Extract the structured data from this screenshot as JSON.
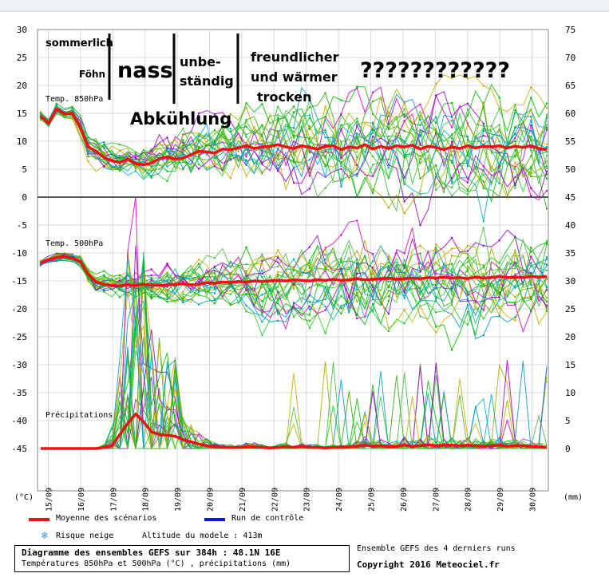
{
  "chart_data": {
    "type": "line",
    "x_categories": [
      "15/09",
      "16/09",
      "17/09",
      "18/09",
      "19/09",
      "20/09",
      "21/09",
      "22/09",
      "23/09",
      "24/09",
      "25/09",
      "26/09",
      "27/09",
      "28/09",
      "29/09",
      "30/09"
    ],
    "left_axis_ticks": [
      30,
      25,
      20,
      15,
      10,
      5,
      0,
      -5,
      -10,
      -15,
      -20,
      -25,
      -30,
      -35,
      -40,
      -45
    ],
    "right_axis_ticks": [
      75,
      70,
      65,
      60,
      55,
      50,
      45,
      40,
      35,
      30,
      25,
      20,
      15,
      10,
      5,
      0
    ],
    "left_unit": "(°C)",
    "right_unit": "(mm)",
    "panels": [
      {
        "label": "Temp. 850hPa",
        "series_mean_name": "Moyenne des scénarios",
        "mean_values": [
          14.5,
          13.2,
          15.8,
          14.9,
          15.0,
          12.5,
          9.0,
          8.2,
          7.1,
          6.5,
          6.2,
          6.8,
          6.0,
          5.8,
          6.1,
          6.9,
          7.2,
          6.8,
          7.0,
          7.6,
          8.2,
          8.1,
          7.9,
          8.6,
          8.5,
          8.8,
          9.2,
          8.7,
          9.0,
          9.1,
          9.4,
          9.0,
          8.7,
          9.2,
          8.9,
          8.6,
          9.1,
          9.2,
          8.5,
          9.0,
          8.8,
          9.4,
          8.6,
          9.1,
          8.7,
          9.2,
          9.0,
          9.3,
          8.6,
          9.1,
          8.9,
          8.5,
          9.0,
          8.7,
          9.2,
          8.8,
          9.1,
          9.0,
          9.2,
          8.8,
          9.1,
          8.9,
          9.2,
          8.7,
          8.5
        ]
      },
      {
        "label": "Temp. 500hPa",
        "mean_values": [
          -11.8,
          -11.2,
          -10.8,
          -10.6,
          -10.9,
          -11.5,
          -13.8,
          -15.2,
          -15.6,
          -15.8,
          -15.9,
          -15.7,
          -15.8,
          -15.6,
          -15.7,
          -15.8,
          -15.7,
          -15.6,
          -15.5,
          -15.7,
          -15.6,
          -15.3,
          -15.4,
          -15.2,
          -15.3,
          -15.1,
          -15.2,
          -15.0,
          -15.1,
          -15.0,
          -14.9,
          -15.0,
          -14.8,
          -14.9,
          -15.0,
          -14.8,
          -14.9,
          -14.7,
          -14.9,
          -14.8,
          -14.6,
          -14.8,
          -14.7,
          -14.6,
          -14.5,
          -14.7,
          -14.6,
          -14.5,
          -14.6,
          -14.4,
          -14.5,
          -14.3,
          -14.5,
          -14.4,
          -14.6,
          -14.3,
          -14.5,
          -14.4,
          -14.2,
          -14.4,
          -14.3,
          -14.4,
          -14.2,
          -14.3,
          -14.2
        ]
      },
      {
        "label": "Précipitations",
        "mean_values_mm": [
          0,
          0,
          0,
          0,
          0,
          0,
          0,
          0,
          0.2,
          0.5,
          2.5,
          4.5,
          6.2,
          4.8,
          3.0,
          2.5,
          2.4,
          2.2,
          1.6,
          1.2,
          0.8,
          0.5,
          0.3,
          0.2,
          0.2,
          0.2,
          0.3,
          0.3,
          0.2,
          0.1,
          0.2,
          0.3,
          0.2,
          0.4,
          0.2,
          0.2,
          0.1,
          0.2,
          0.2,
          0.3,
          0.4,
          0.6,
          0.4,
          0.5,
          0.3,
          0.4,
          0.6,
          0.4,
          0.5,
          0.7,
          0.5,
          0.6,
          0.6,
          0.5,
          0.6,
          0.5,
          0.4,
          0.5,
          0.6,
          0.4,
          0.5,
          0.5,
          0.4,
          0.3,
          0.2
        ]
      }
    ],
    "legend": [
      {
        "name": "Moyenne des scénarios",
        "color": "#ee1111"
      },
      {
        "name": "Run de contrôle",
        "color": "#1111ee"
      },
      {
        "name": "Risque neige",
        "icon": "snowflake-icon"
      }
    ],
    "ensemble_colors": [
      "#00bb00",
      "#22cc22",
      "#33aa00",
      "#aaaa00",
      "#cc00cc",
      "#9900cc",
      "#00aacc",
      "#0099bb",
      "#ccaa00",
      "#44bb44"
    ],
    "annotations": [
      "sommerlich",
      "Föhn",
      "nass",
      "unbe-",
      "ständig",
      "freundlicher",
      "und wärmer",
      "trocken",
      "Abkühlung",
      "????????????"
    ],
    "grid": true
  },
  "footer": {
    "altitude": "Altitude du modele : 413m",
    "title": "Diagramme des ensembles GEFS sur 384h : 48.1N 16E",
    "subtitle": "Températures 850hPa et 500hPa (°C) , précipitations (mm)",
    "ensemble_note": "Ensemble GEFS des 4 derniers runs",
    "copyright": "Copyright 2016 Meteociel.fr"
  }
}
